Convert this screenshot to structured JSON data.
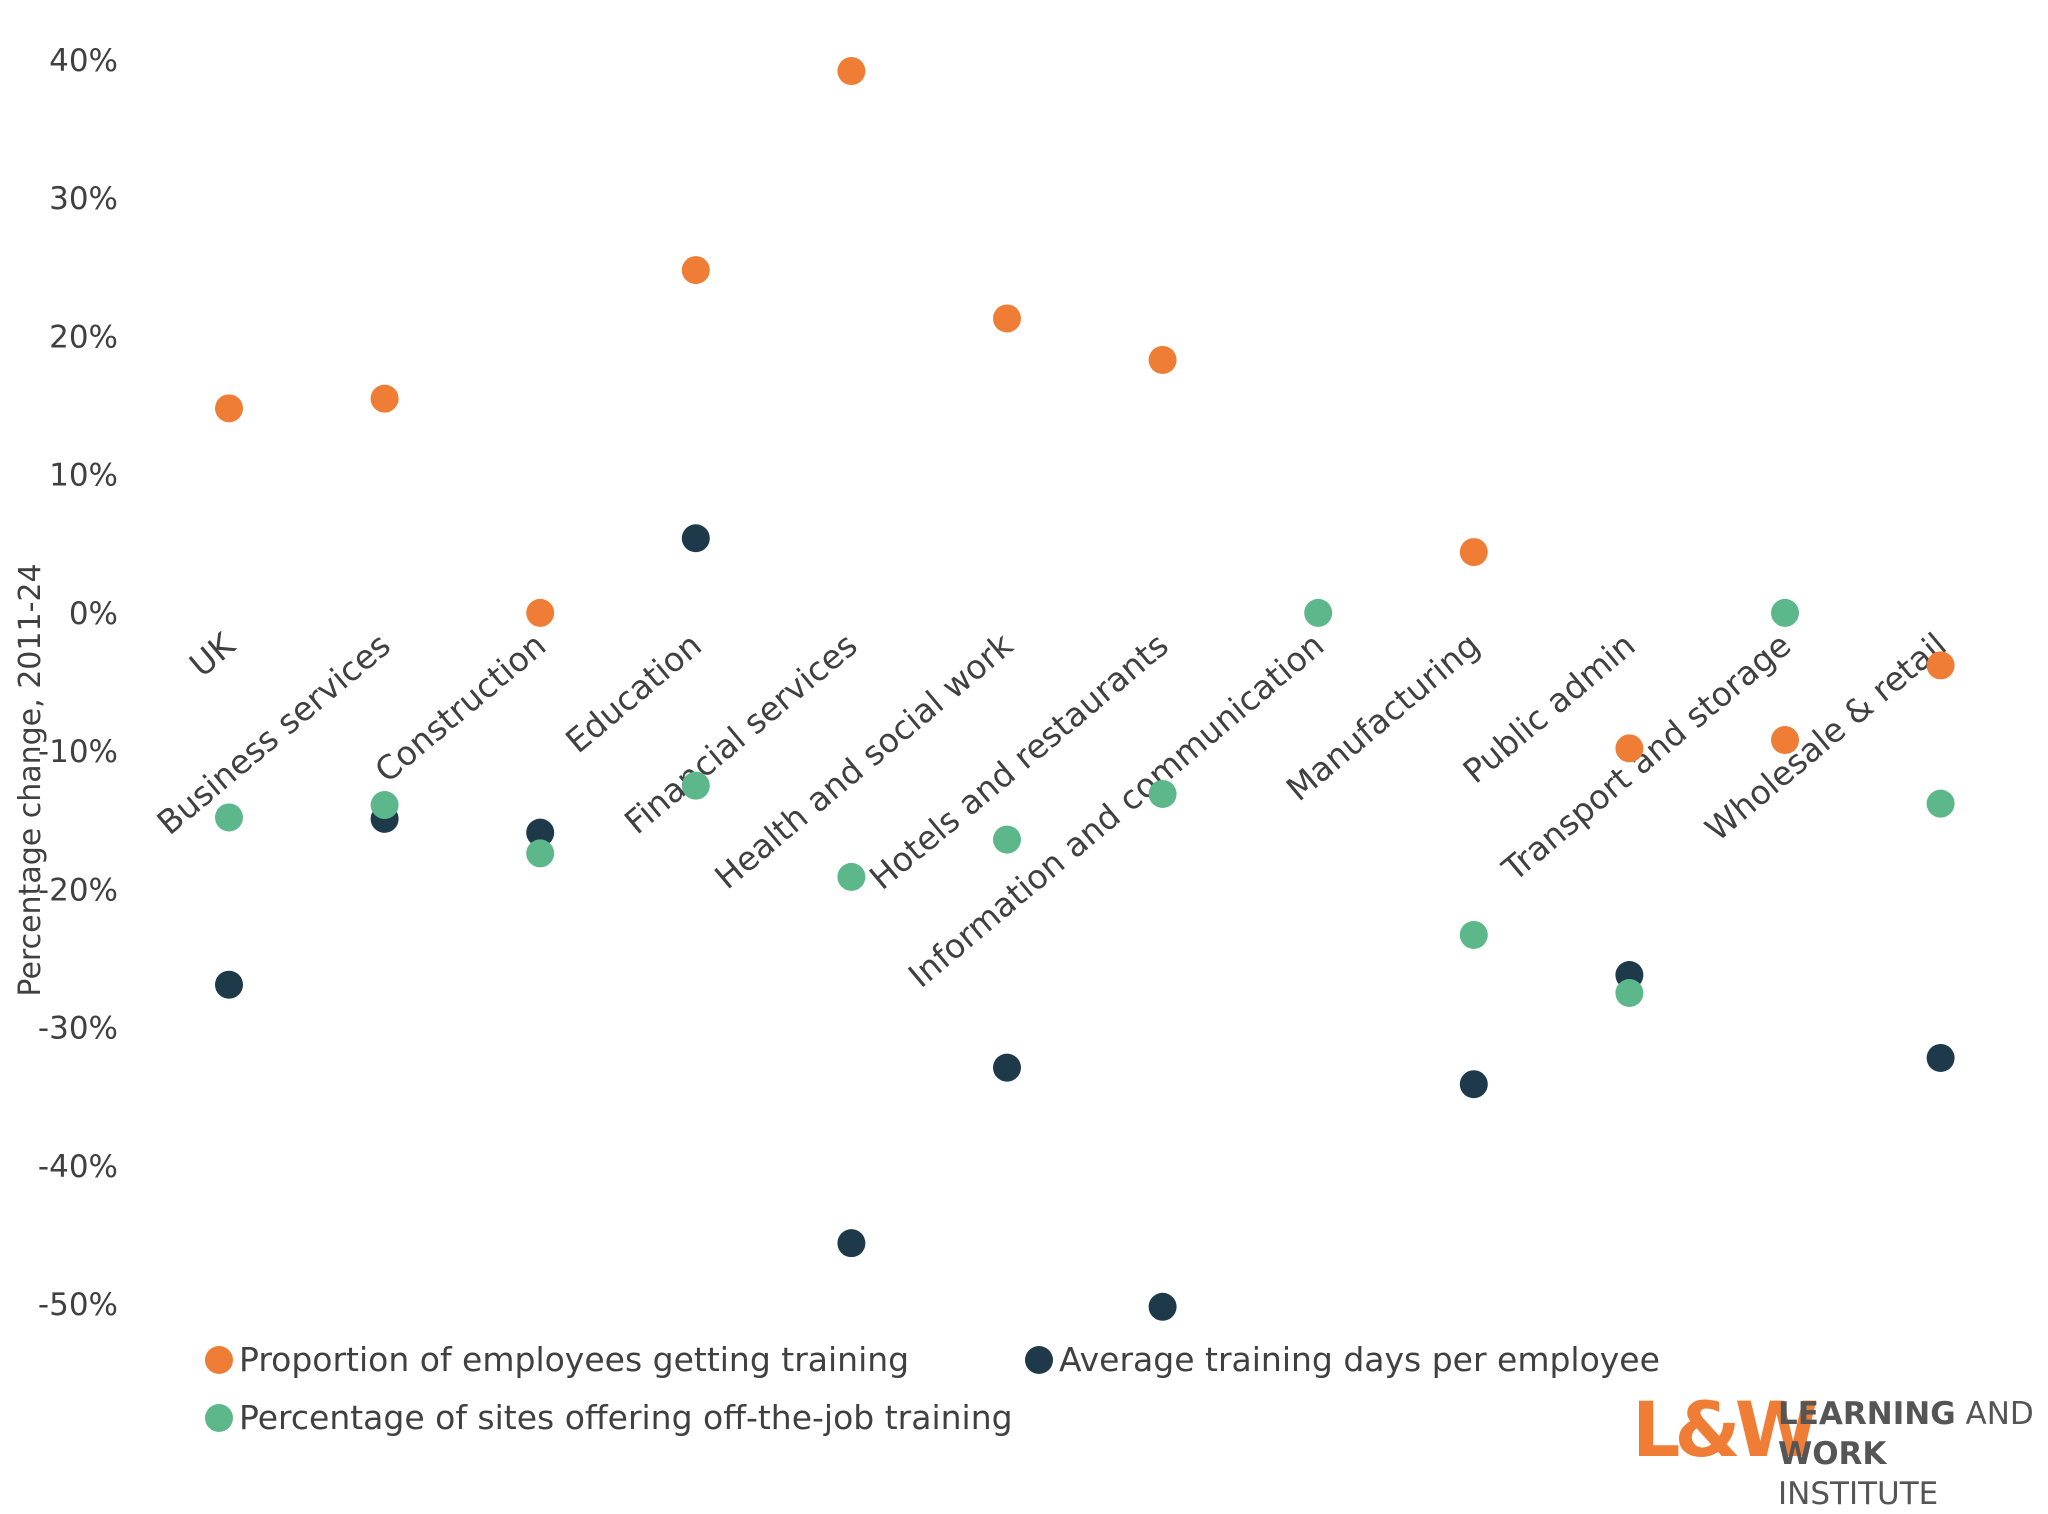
{
  "chart_data": {
    "type": "scatter",
    "title": "",
    "xlabel": "",
    "ylabel": "Percentage change, 2011-24",
    "ylim": [
      -50,
      40
    ],
    "yticks": [
      "40%",
      "30%",
      "20%",
      "10%",
      "0%",
      "-10%",
      "-20%",
      "-30%",
      "-40%",
      "-50%"
    ],
    "categories": [
      "UK",
      "Business services",
      "Construction",
      "Education",
      "Financial services",
      "Health and social work",
      "Hotels and restaurants",
      "Information and communication",
      "Manufacturing",
      "Public admin",
      "Transport and storage",
      "Wholesale & retail"
    ],
    "legend_position": "bottom",
    "series": [
      {
        "name": "Proportion of employees getting training",
        "color": "#ef7d35",
        "values": [
          14.8,
          15.5,
          0,
          24.8,
          39.2,
          21.3,
          18.3,
          null,
          4.4,
          -9.8,
          -9.2,
          -3.8
        ]
      },
      {
        "name": "Average training days per employee",
        "color": "#1e3a4a",
        "values": [
          -26.9,
          -14.9,
          -15.9,
          5.4,
          -45.6,
          -32.9,
          -50.2,
          null,
          -34.1,
          -26.2,
          null,
          -32.2
        ]
      },
      {
        "name": "Percentage of sites offering off-the-job training",
        "color": "#5cb88a",
        "values": [
          -14.8,
          -13.9,
          -17.4,
          -12.5,
          -19.1,
          -16.4,
          -13.1,
          0,
          -23.3,
          -27.5,
          0,
          -13.8
        ]
      }
    ]
  },
  "logo": {
    "mark": "L&W",
    "line1_bold": "LEARNING",
    "line1_rest": " AND",
    "line2_bold": "WORK",
    "line2_rest": " INSTITUTE"
  }
}
